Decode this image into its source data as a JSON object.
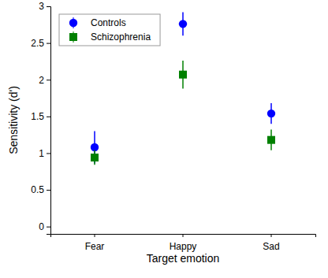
{
  "chart_data": {
    "type": "scatter",
    "x_label": "Target emotion",
    "y_label": "Sensitivity (d')",
    "categories": [
      "Fear",
      "Happy",
      "Sad"
    ],
    "ylim": [
      -0.1,
      3
    ],
    "yticks": [
      0,
      0.5,
      1,
      1.5,
      2,
      2.5,
      3
    ],
    "legend": "upper left",
    "series": [
      {
        "name": "Controls",
        "color": "#0000ff",
        "marker": "circle",
        "values": [
          1.08,
          2.76,
          1.54
        ],
        "errors": [
          0.22,
          0.16,
          0.14
        ]
      },
      {
        "name": "Schizophrenia",
        "color": "#008000",
        "marker": "square",
        "values": [
          0.94,
          2.07,
          1.18
        ],
        "errors": [
          0.1,
          0.19,
          0.14
        ]
      }
    ]
  }
}
